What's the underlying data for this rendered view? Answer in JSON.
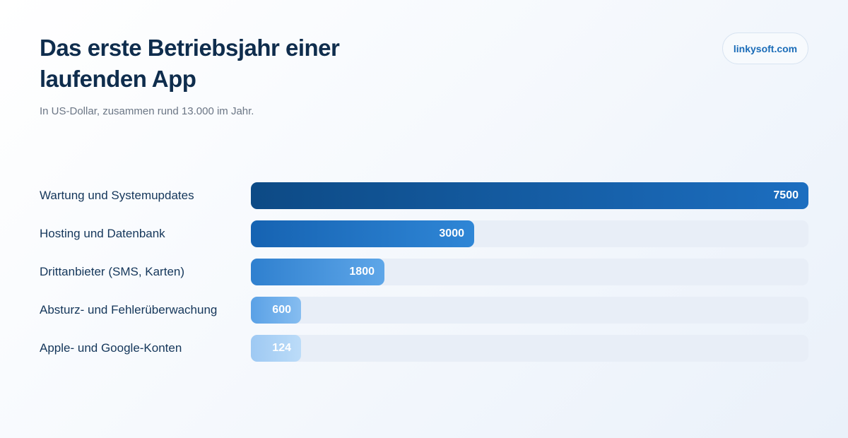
{
  "title": "Das erste Betriebsjahr einer laufenden App",
  "subtitle": "In US-Dollar, zusammen rund 13.000 im Jahr.",
  "brand": "linkysoft.com",
  "colors": {
    "bars": [
      [
        "#0d4a85",
        "#1c6ec0"
      ],
      [
        "#1663b2",
        "#2f86d6"
      ],
      [
        "#2f80cf",
        "#5ea6e8"
      ],
      [
        "#5aa1e6",
        "#86bdf0"
      ],
      [
        "#9ec9f3",
        "#bcdcf8"
      ]
    ],
    "track": "#e8eef7"
  },
  "chart_data": {
    "type": "bar",
    "orientation": "horizontal",
    "categories": [
      "Wartung und Systemupdates",
      "Hosting und Datenbank",
      "Drittanbieter (SMS, Karten)",
      "Absturz- und Fehlerüberwachung",
      "Apple- und Google-Konten"
    ],
    "values": [
      7500,
      3000,
      1800,
      600,
      124
    ],
    "value_labels": [
      "7500",
      "3000",
      "1800",
      "600",
      "124"
    ],
    "xlim": [
      0,
      7500
    ],
    "grid": false,
    "legend": "none"
  }
}
